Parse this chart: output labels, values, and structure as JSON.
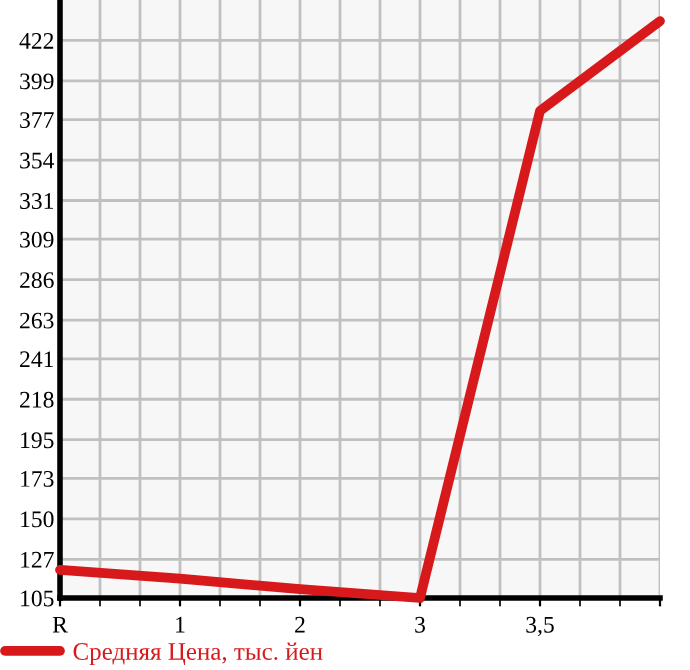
{
  "chart_data": {
    "type": "line",
    "categories": [
      "R",
      "1",
      "2",
      "3",
      "3,5",
      null
    ],
    "series": [
      {
        "name": "Средняя Цена, тыс. йен",
        "color": "#d7191c",
        "values": [
          121,
          116,
          110,
          105,
          382,
          433
        ]
      }
    ],
    "ylim": [
      105,
      445
    ],
    "yticks": [
      105,
      127,
      150,
      173,
      195,
      218,
      241,
      263,
      286,
      309,
      331,
      354,
      377,
      399,
      422
    ],
    "grid": true,
    "legend": "bottom",
    "marker": "none",
    "line_style": "solid"
  }
}
